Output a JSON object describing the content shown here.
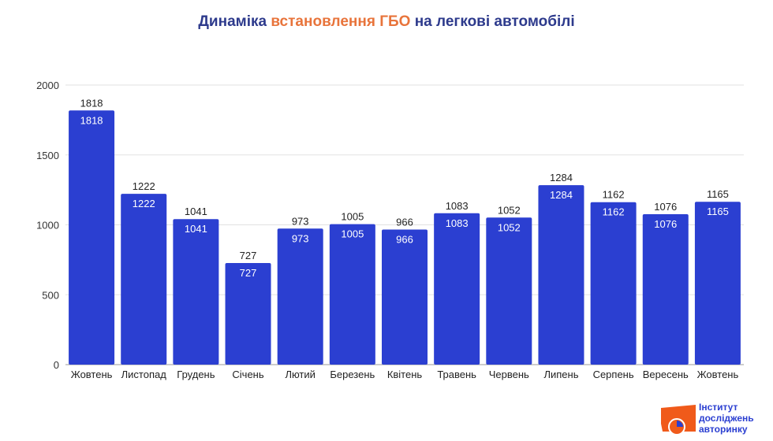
{
  "chart_data": {
    "type": "bar",
    "title": {
      "part1": "Динаміка ",
      "part2": "встановлення ГБО",
      "part3": " на легкові автомобілі"
    },
    "categories": [
      "Жовтень",
      "Листопад",
      "Грудень",
      "Січень",
      "Лютий",
      "Березень",
      "Квітень",
      "Травень",
      "Червень",
      "Липень",
      "Серпень",
      "Вересень",
      "Жовтень"
    ],
    "values": [
      1818,
      1222,
      1041,
      727,
      973,
      1005,
      966,
      1083,
      1052,
      1284,
      1162,
      1076,
      1165
    ],
    "ylim": [
      0,
      2000
    ],
    "yticks": [
      0,
      500,
      1000,
      1500,
      2000
    ],
    "grid": true,
    "bar_color": "#2b3fd1",
    "xlabel": "",
    "ylabel": ""
  },
  "logo": {
    "line1": "Інститут",
    "line2": "досліджень",
    "line3": "авторинку"
  },
  "colors": {
    "title": "#2d3a8c",
    "accent": "#e8743b",
    "logo_orange": "#f05a1a"
  }
}
